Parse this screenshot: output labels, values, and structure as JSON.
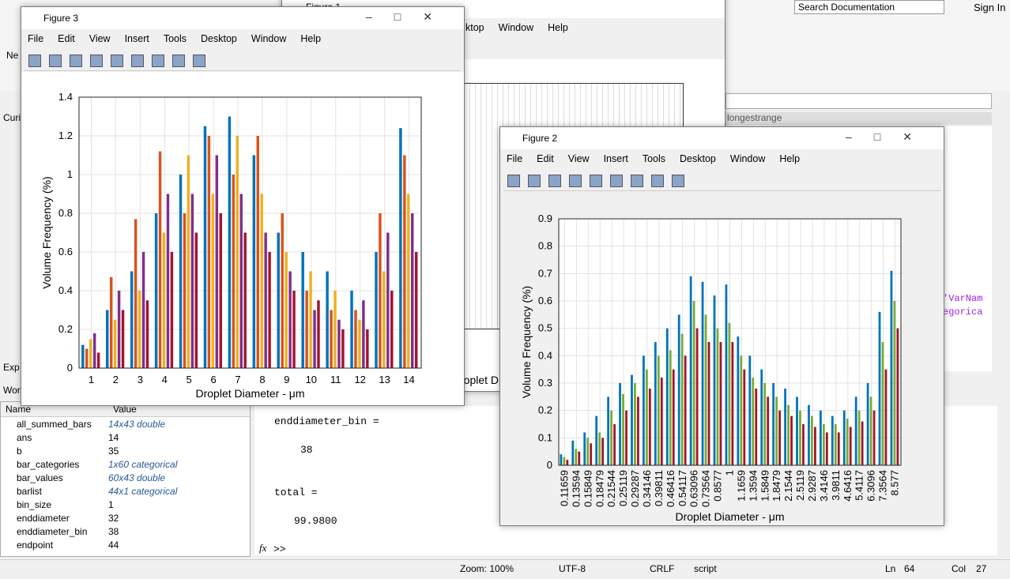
{
  "desktop": {
    "new_label": "Ne",
    "search": "Search Documentation",
    "sign_in": "Sign In",
    "current_folder_tab": "Curi",
    "folder_path_fragment": "longestrange",
    "command_tab": "Exp",
    "workspace_tab": "Wor",
    "code_fragments": [
      "'VarNam",
      "egorica"
    ]
  },
  "figure1": {
    "title": "Figure 1",
    "menu": [
      "ktop",
      "Window",
      "Help"
    ],
    "xlabel_fragment": "roplet D"
  },
  "figure3": {
    "title": "Figure 3",
    "menu": [
      "File",
      "Edit",
      "View",
      "Insert",
      "Tools",
      "Desktop",
      "Window",
      "Help"
    ]
  },
  "figure2": {
    "title": "Figure 2",
    "menu": [
      "File",
      "Edit",
      "View",
      "Insert",
      "Tools",
      "Desktop",
      "Window",
      "Help"
    ]
  },
  "workspace": {
    "headers": [
      "Name",
      "Value"
    ],
    "rows": [
      [
        "all_summed_bars",
        "14x43 double"
      ],
      [
        "ans",
        14
      ],
      [
        "b",
        35
      ],
      [
        "bar_categories",
        "1x60 categorical"
      ],
      [
        "bar_values",
        "60x43 double"
      ],
      [
        "barlist",
        "44x1 categorical"
      ],
      [
        "bin_size",
        1
      ],
      [
        "enddiameter",
        32
      ],
      [
        "enddiameter_bin",
        38
      ],
      [
        "endpoint",
        44
      ]
    ]
  },
  "command_window": {
    "lines": [
      "enddiameter_bin =",
      "38",
      "total =",
      "99.9800"
    ],
    "fx": "fx",
    "prompt": ">>"
  },
  "status_bar": {
    "zoom": "Zoom: 100%",
    "encoding": "UTF-8",
    "line_ending": "CRLF",
    "mode": "script",
    "ln_label": "Ln",
    "ln": 64,
    "col_label": "Col",
    "col": 27
  },
  "chart_data": [
    {
      "type": "bar",
      "xlabel": "Droplet Diameter - μm",
      "ylabel": "Volume Frequency (%)",
      "categories": [
        1,
        2,
        3,
        4,
        5,
        6,
        7,
        8,
        9,
        10,
        11,
        12,
        13,
        14
      ],
      "series": [
        {
          "color": "#0072bd",
          "values": [
            0.12,
            0.3,
            0.5,
            0.8,
            1.0,
            1.25,
            1.3,
            1.1,
            0.7,
            0.6,
            0.5,
            0.4,
            0.6,
            1.24
          ]
        },
        {
          "color": "#d95319",
          "values": [
            0.1,
            0.47,
            0.77,
            1.12,
            0.8,
            1.2,
            1.0,
            1.2,
            0.8,
            0.4,
            0.3,
            0.3,
            0.8,
            1.1
          ]
        },
        {
          "color": "#edb120",
          "values": [
            0.15,
            0.25,
            0.4,
            0.7,
            1.1,
            0.9,
            1.2,
            0.9,
            0.6,
            0.5,
            0.4,
            0.25,
            0.5,
            0.9
          ]
        },
        {
          "color": "#7e2f8e",
          "values": [
            0.18,
            0.4,
            0.6,
            0.9,
            0.9,
            1.1,
            0.9,
            0.7,
            0.5,
            0.3,
            0.25,
            0.35,
            0.7,
            0.8
          ]
        },
        {
          "color": "#a2142f",
          "values": [
            0.08,
            0.3,
            0.35,
            0.6,
            0.7,
            0.8,
            0.7,
            0.6,
            0.4,
            0.35,
            0.2,
            0.2,
            0.4,
            0.6
          ]
        }
      ],
      "ylim": [
        0,
        1.4
      ],
      "yticks": [
        0,
        0.2,
        0.4,
        0.6,
        0.8,
        1,
        1.2,
        1.4
      ],
      "grid": true
    },
    {
      "type": "bar",
      "xlabel": "Droplet Diameter - μm",
      "ylabel": "Volume Frequency (%)",
      "categories": [
        "0.11659",
        "0.13594",
        "0.15849",
        "0.18479",
        "0.21544",
        "0.25119",
        "0.29287",
        "0.34146",
        "0.39811",
        "0.46416",
        "0.54117",
        "0.63096",
        "0.73564",
        "0.8577",
        "1",
        "1.1659",
        "1.3594",
        "1.5849",
        "1.8479",
        "2.1544",
        "2.5119",
        "2.9287",
        "3.4146",
        "3.9811",
        "4.6416",
        "5.4117",
        "6.3096",
        "7.3564",
        "8.577"
      ],
      "series": [
        {
          "color": "#0072bd",
          "values": [
            0.04,
            0.09,
            0.12,
            0.18,
            0.25,
            0.3,
            0.33,
            0.4,
            0.45,
            0.5,
            0.55,
            0.69,
            0.67,
            0.62,
            0.66,
            0.47,
            0.4,
            0.35,
            0.3,
            0.28,
            0.25,
            0.22,
            0.2,
            0.18,
            0.2,
            0.25,
            0.3,
            0.56,
            0.71
          ]
        },
        {
          "color": "#77ac30",
          "values": [
            0.03,
            0.06,
            0.1,
            0.12,
            0.2,
            0.26,
            0.3,
            0.35,
            0.4,
            0.42,
            0.48,
            0.6,
            0.55,
            0.5,
            0.52,
            0.4,
            0.32,
            0.3,
            0.25,
            0.22,
            0.2,
            0.18,
            0.15,
            0.15,
            0.17,
            0.2,
            0.25,
            0.45,
            0.6
          ]
        },
        {
          "color": "#a2142f",
          "values": [
            0.02,
            0.05,
            0.08,
            0.1,
            0.15,
            0.2,
            0.25,
            0.28,
            0.32,
            0.35,
            0.4,
            0.5,
            0.45,
            0.45,
            0.45,
            0.35,
            0.28,
            0.25,
            0.2,
            0.18,
            0.15,
            0.14,
            0.12,
            0.12,
            0.14,
            0.16,
            0.2,
            0.35,
            0.5
          ]
        }
      ],
      "ylim": [
        0,
        0.9
      ],
      "yticks": [
        0,
        0.1,
        0.2,
        0.3,
        0.4,
        0.5,
        0.6,
        0.7,
        0.8,
        0.9
      ],
      "grid": true
    }
  ]
}
